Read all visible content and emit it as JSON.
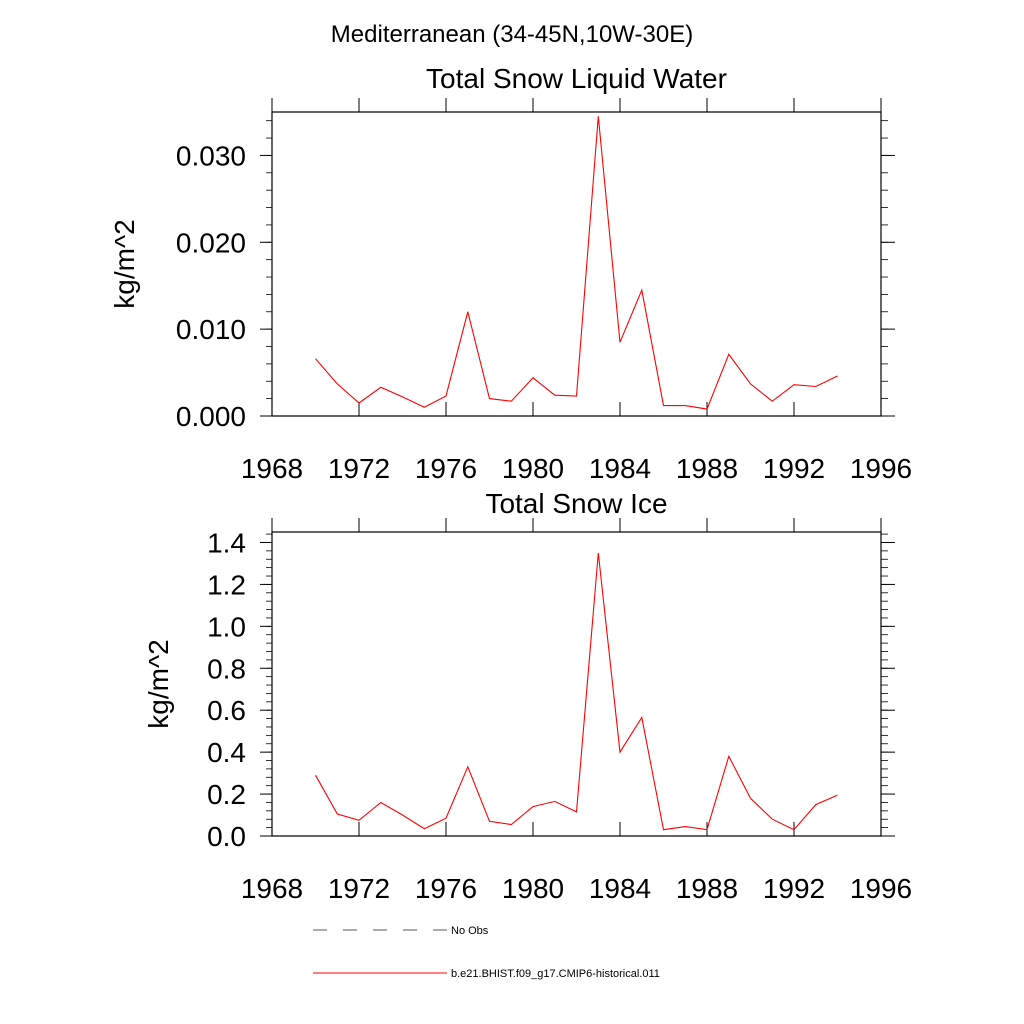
{
  "figure": {
    "suptitle": "Mediterranean (34-45N,10W-30E)"
  },
  "chart_data": [
    {
      "type": "line",
      "title": "Total Snow Liquid Water",
      "ylabel": "kg/m^2",
      "xlabel": "",
      "xlim": [
        1968,
        1996
      ],
      "ylim": [
        0.0,
        0.035
      ],
      "xticks": [
        1968,
        1972,
        1976,
        1980,
        1984,
        1988,
        1992,
        1996
      ],
      "xtick_labels": [
        "1968",
        "1972",
        "1976",
        "1980",
        "1984",
        "1988",
        "1992",
        "1996"
      ],
      "yticks": [
        0.0,
        0.01,
        0.02,
        0.03
      ],
      "ytick_labels": [
        "0.000",
        "0.010",
        "0.020",
        "0.030"
      ],
      "grid": false,
      "series": [
        {
          "name": "b.e21.BHIST.f09_g17.CMIP6-historical.011",
          "color": "#ff0000",
          "x": [
            1970,
            1971,
            1972,
            1973,
            1974,
            1975,
            1976,
            1977,
            1978,
            1979,
            1980,
            1981,
            1982,
            1983,
            1984,
            1985,
            1986,
            1987,
            1988,
            1989,
            1990,
            1991,
            1992,
            1993,
            1994
          ],
          "values": [
            0.0066,
            0.0037,
            0.0015,
            0.0033,
            0.0022,
            0.001,
            0.0023,
            0.012,
            0.002,
            0.0017,
            0.0044,
            0.0024,
            0.0023,
            0.0345,
            0.0085,
            0.0145,
            0.0012,
            0.0012,
            0.0008,
            0.0071,
            0.0037,
            0.0017,
            0.0036,
            0.0034,
            0.0046
          ]
        }
      ]
    },
    {
      "type": "line",
      "title": "Total Snow Ice",
      "ylabel": "kg/m^2",
      "xlabel": "",
      "xlim": [
        1968,
        1996
      ],
      "ylim": [
        0.0,
        1.45
      ],
      "xticks": [
        1968,
        1972,
        1976,
        1980,
        1984,
        1988,
        1992,
        1996
      ],
      "xtick_labels": [
        "1968",
        "1972",
        "1976",
        "1980",
        "1984",
        "1988",
        "1992",
        "1996"
      ],
      "yticks": [
        0.0,
        0.2,
        0.4,
        0.6,
        0.8,
        1.0,
        1.2,
        1.4
      ],
      "ytick_labels": [
        "0.0",
        "0.2",
        "0.4",
        "0.6",
        "0.8",
        "1.0",
        "1.2",
        "1.4"
      ],
      "grid": false,
      "series": [
        {
          "name": "b.e21.BHIST.f09_g17.CMIP6-historical.011",
          "color": "#ff0000",
          "x": [
            1970,
            1971,
            1972,
            1973,
            1974,
            1975,
            1976,
            1977,
            1978,
            1979,
            1980,
            1981,
            1982,
            1983,
            1984,
            1985,
            1986,
            1987,
            1988,
            1989,
            1990,
            1991,
            1992,
            1993,
            1994
          ],
          "values": [
            0.29,
            0.105,
            0.075,
            0.16,
            0.1,
            0.035,
            0.085,
            0.33,
            0.07,
            0.055,
            0.14,
            0.165,
            0.115,
            1.35,
            0.4,
            0.565,
            0.03,
            0.045,
            0.03,
            0.38,
            0.18,
            0.08,
            0.03,
            0.15,
            0.195
          ]
        }
      ]
    }
  ],
  "legend": {
    "placement": "bottom",
    "entries": [
      {
        "label": "No Obs",
        "style": "dashed",
        "color": "#555577"
      },
      {
        "label": "b.e21.BHIST.f09_g17.CMIP6-historical.011",
        "style": "solid",
        "color": "#ff0000"
      }
    ]
  }
}
